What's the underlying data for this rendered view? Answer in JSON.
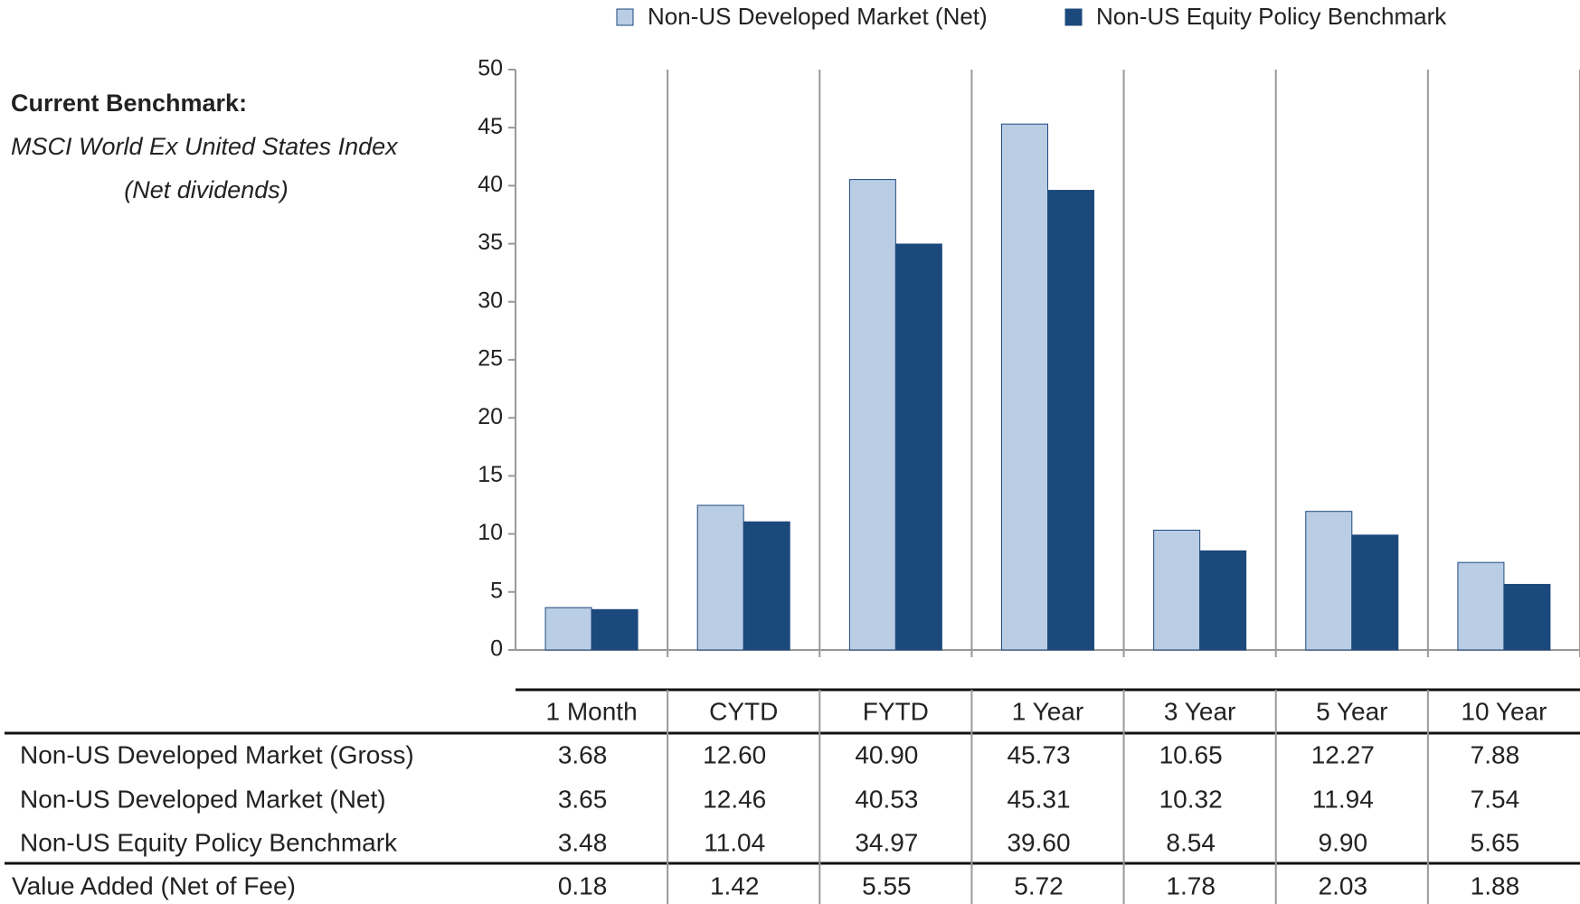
{
  "chart_data": {
    "type": "bar",
    "categories": [
      "1 Month",
      "CYTD",
      "FYTD",
      "1 Year",
      "3 Year",
      "5 Year",
      "10 Year"
    ],
    "series": [
      {
        "name": "Non-US Developed Market (Net)",
        "color": "#b9cde5",
        "values": [
          3.65,
          12.46,
          40.53,
          45.31,
          10.32,
          11.94,
          7.54
        ]
      },
      {
        "name": "Non-US Equity Policy Benchmark",
        "color": "#1b497c",
        "values": [
          3.48,
          11.04,
          34.97,
          39.6,
          8.54,
          9.9,
          5.65
        ]
      }
    ],
    "ylim": [
      0,
      50
    ],
    "yticks": [
      0,
      5,
      10,
      15,
      20,
      25,
      30,
      35,
      40,
      45,
      50
    ],
    "grid": true,
    "legend": "top"
  },
  "benchmark": {
    "heading": "Current Benchmark:",
    "name": "MSCI World Ex United States Index",
    "note": "(Net dividends)"
  },
  "table": {
    "columns": [
      "1 Month",
      "CYTD",
      "FYTD",
      "1 Year",
      "3 Year",
      "5 Year",
      "10 Year"
    ],
    "rows": [
      {
        "label": "Non-US Developed Market (Gross)",
        "values": [
          "3.68",
          "12.60",
          "40.90",
          "45.73",
          "10.65",
          "12.27",
          "7.88"
        ]
      },
      {
        "label": "Non-US Developed Market (Net)",
        "values": [
          "3.65",
          "12.46",
          "40.53",
          "45.31",
          "10.32",
          "11.94",
          "7.54"
        ]
      },
      {
        "label": "Non-US Equity Policy Benchmark",
        "values": [
          "3.48",
          "11.04",
          "34.97",
          "39.60",
          "8.54",
          "9.90",
          "5.65"
        ]
      },
      {
        "label": "Value Added (Net of Fee)",
        "values": [
          "0.18",
          "1.42",
          "5.55",
          "5.72",
          "1.78",
          "2.03",
          "1.88"
        ]
      }
    ]
  }
}
